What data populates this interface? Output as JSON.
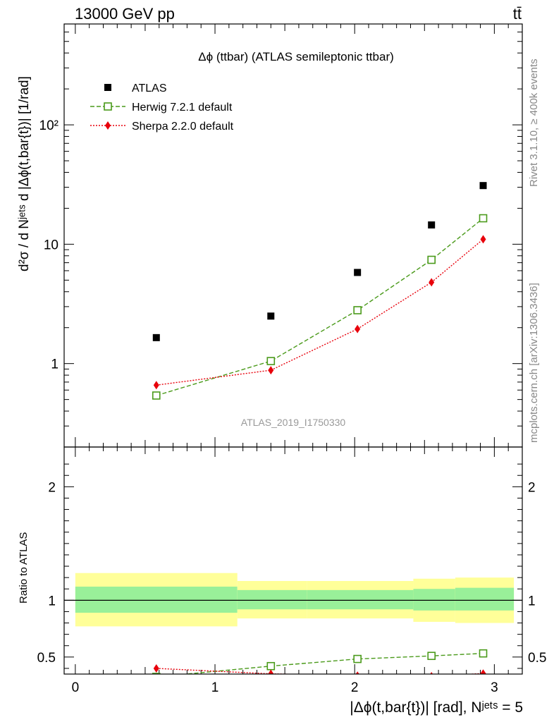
{
  "header": {
    "left": "13000 GeV pp",
    "right": "tt̄"
  },
  "side_labels": {
    "rivet": "Rivet 3.1.10, ≥ 400k events",
    "mcplots": "mcplots.cern.ch [arXiv:1306.3436]"
  },
  "chart_data": [
    {
      "type": "scatter",
      "title": "Δϕ (ttbar) (ATLAS semileptonic ttbar)",
      "watermark": "ATLAS_2019_I1750330",
      "ylabel": "d²σ / d Nʲᵉᵗˢ d |Δϕ(t,bar{t})| [1/rad]",
      "yscale": "log",
      "ylim": [
        0.2,
        700
      ],
      "xlim": [
        -0.08,
        3.2
      ],
      "yticks": [
        1,
        10,
        100
      ],
      "ytick_labels": [
        "1",
        "10",
        "10²"
      ],
      "legend_position": "top-left",
      "series": [
        {
          "name": "ATLAS",
          "color": "#000000",
          "marker": "filled-square",
          "x": [
            0.58,
            1.4,
            2.02,
            2.55,
            2.92
          ],
          "y": [
            1.65,
            2.5,
            5.8,
            14.5,
            31.0
          ]
        },
        {
          "name": "Herwig 7.2.1 default",
          "color": "#4a9a1a",
          "marker": "open-square",
          "line": "dashed",
          "x": [
            0.58,
            1.4,
            2.02,
            2.55,
            2.92
          ],
          "y": [
            0.54,
            1.05,
            2.8,
            7.4,
            16.5
          ]
        },
        {
          "name": "Sherpa 2.2.0 default",
          "color": "#e8000b",
          "marker": "filled-diamond",
          "line": "dotted",
          "x": [
            0.58,
            1.4,
            2.02,
            2.55,
            2.92
          ],
          "y": [
            0.66,
            0.88,
            1.95,
            4.8,
            11.0
          ]
        }
      ]
    },
    {
      "type": "line",
      "ylabel": "Ratio to ATLAS",
      "xlabel": "|Δϕ(t,bar{t})| [rad], Nʲᵉᵗˢ = 5",
      "ylim": [
        0.35,
        2.35
      ],
      "xlim": [
        -0.08,
        3.2
      ],
      "xticks": [
        0,
        1,
        2,
        3
      ],
      "xtick_labels": [
        "0",
        "1",
        "2",
        "3"
      ],
      "yticks": [
        0.5,
        1,
        2
      ],
      "ytick_labels": [
        "0.5",
        "1",
        "2"
      ],
      "bands": [
        {
          "x0": 0.0,
          "x1": 1.16,
          "inner": [
            0.89,
            1.12
          ],
          "outer": [
            0.77,
            1.24
          ]
        },
        {
          "x0": 1.16,
          "x1": 1.66,
          "inner": [
            0.92,
            1.09
          ],
          "outer": [
            0.84,
            1.17
          ]
        },
        {
          "x0": 1.66,
          "x1": 2.42,
          "inner": [
            0.92,
            1.09
          ],
          "outer": [
            0.84,
            1.17
          ]
        },
        {
          "x0": 2.42,
          "x1": 2.72,
          "inner": [
            0.91,
            1.1
          ],
          "outer": [
            0.81,
            1.19
          ]
        },
        {
          "x0": 2.72,
          "x1": 3.14,
          "inner": [
            0.91,
            1.11
          ],
          "outer": [
            0.8,
            1.2
          ]
        }
      ],
      "band_colors": {
        "inner": "#99f099",
        "outer": "#ffff99"
      },
      "reference_line": 1,
      "series": [
        {
          "name": "Herwig 7.2.1 default",
          "color": "#4a9a1a",
          "marker": "open-square",
          "line": "dashed",
          "x": [
            0.58,
            1.4,
            2.02,
            2.55,
            2.92
          ],
          "y": [
            0.325,
            0.42,
            0.483,
            0.51,
            0.532
          ]
        },
        {
          "name": "Sherpa 2.2.0 default",
          "color": "#e8000b",
          "marker": "filled-diamond",
          "line": "dotted",
          "x": [
            0.58,
            1.4,
            2.02,
            2.55,
            2.92
          ],
          "y": [
            0.4,
            0.352,
            0.336,
            0.331,
            0.355
          ]
        }
      ]
    }
  ]
}
